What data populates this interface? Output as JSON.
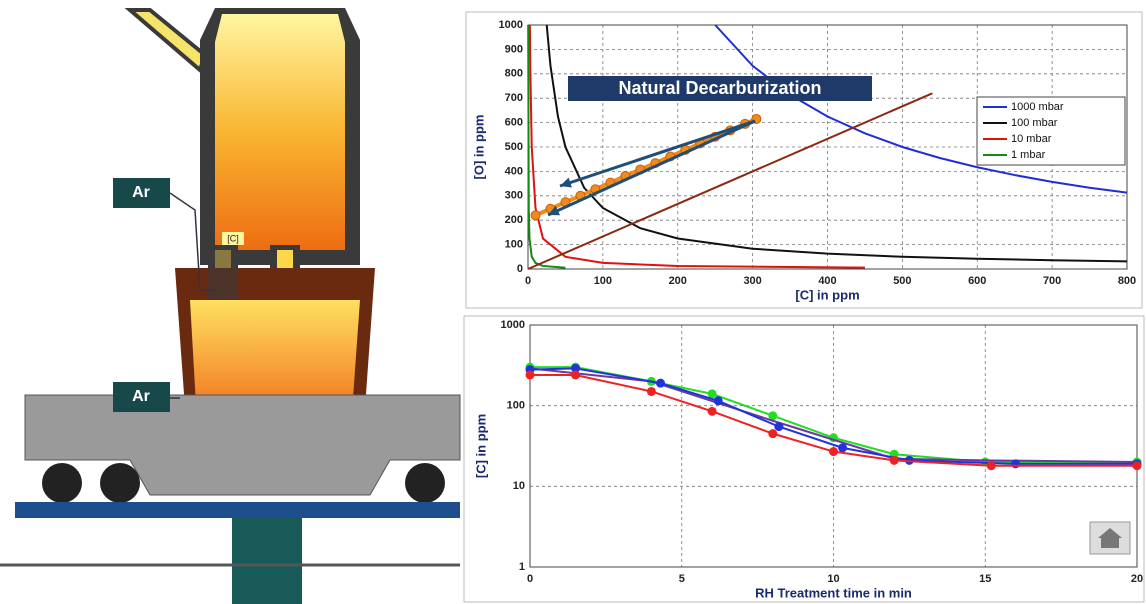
{
  "illustration": {
    "labels": [
      "Ar",
      "Ar",
      "[C]"
    ]
  },
  "chart_data": [
    {
      "type": "line",
      "annotation": "Natural Decarburization",
      "xlabel": "[C] in ppm",
      "ylabel": "[O] in ppm",
      "xlim": [
        0,
        800
      ],
      "xticks": [
        0,
        100,
        200,
        300,
        400,
        500,
        600,
        700,
        800
      ],
      "ylim": [
        0,
        1000
      ],
      "yticks": [
        0,
        100,
        200,
        300,
        400,
        500,
        600,
        700,
        800,
        900,
        1000
      ],
      "grid": true,
      "legend": "upper right",
      "series": [
        {
          "name": "1000 mbar",
          "color": "#1f2fd8",
          "x": [
            250,
            300,
            350,
            400,
            450,
            500,
            550,
            600,
            650,
            700,
            750,
            800
          ],
          "values": [
            1000,
            833,
            714,
            625,
            556,
            500,
            455,
            417,
            385,
            357,
            333,
            313
          ]
        },
        {
          "name": "100 mbar",
          "color": "#111111",
          "x": [
            25,
            30,
            40,
            50,
            75,
            100,
            150,
            200,
            300,
            400,
            500,
            600,
            700,
            800
          ],
          "values": [
            1000,
            833,
            625,
            500,
            333,
            250,
            167,
            125,
            83,
            63,
            50,
            42,
            36,
            31
          ]
        },
        {
          "name": "10 mbar",
          "color": "#e01010",
          "x": [
            2.5,
            3,
            5,
            10,
            20,
            50,
            100,
            200,
            450
          ],
          "values": [
            1000,
            833,
            500,
            250,
            125,
            50,
            25,
            12.5,
            5.6
          ]
        },
        {
          "name": "1 mbar",
          "color": "#138a13",
          "x": [
            0.25,
            1,
            2,
            5,
            10,
            20,
            50
          ],
          "values": [
            1000,
            250,
            125,
            50,
            25,
            12.5,
            5
          ]
        },
        {
          "color": "#8b2a0e",
          "x": [
            0,
            540
          ],
          "values": [
            0,
            720
          ]
        },
        {
          "color": "#f08a1c",
          "marker": true,
          "x": [
            10,
            30,
            50,
            70,
            90,
            110,
            130,
            150,
            170,
            190,
            210,
            230,
            250,
            270,
            290,
            305
          ],
          "values": [
            220,
            247,
            274,
            300,
            327,
            354,
            381,
            408,
            434,
            461,
            488,
            515,
            542,
            568,
            595,
            615
          ]
        }
      ]
    },
    {
      "type": "line",
      "xlabel": "RH Treatment time in min",
      "ylabel": "[C] in ppm",
      "xlim": [
        0,
        20
      ],
      "xticks": [
        0,
        5,
        10,
        15,
        20
      ],
      "ylim": [
        1,
        1000
      ],
      "yticks": [
        1,
        10,
        100,
        1000
      ],
      "log_y": true,
      "grid": true,
      "series": [
        {
          "color": "#22dd22",
          "marker": true,
          "x": [
            0,
            1.5,
            4,
            6,
            8,
            10,
            12,
            15,
            20
          ],
          "values": [
            300,
            300,
            200,
            140,
            75,
            40,
            25,
            20,
            20
          ]
        },
        {
          "color": "#6a3aa0",
          "x": [
            0,
            4,
            8,
            12,
            15,
            20
          ],
          "values": [
            290,
            200,
            65,
            22,
            21,
            20
          ]
        },
        {
          "color": "#2233dd",
          "marker": true,
          "x": [
            0,
            1.5,
            4.3,
            6.2,
            8.2,
            10.3,
            12.5,
            16,
            20
          ],
          "values": [
            280,
            290,
            190,
            115,
            55,
            30,
            21,
            19,
            19
          ]
        },
        {
          "color": "#ee2222",
          "marker": true,
          "x": [
            0,
            1.5,
            4,
            6,
            8,
            10,
            12,
            15.2,
            20
          ],
          "values": [
            240,
            240,
            150,
            85,
            45,
            27,
            21,
            18,
            18
          ]
        }
      ]
    }
  ]
}
